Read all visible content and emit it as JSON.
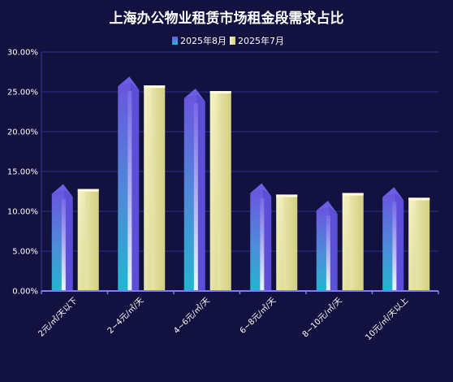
{
  "chart_data": {
    "type": "bar",
    "title": "上海办公物业租赁市场租金段需求占比",
    "categories": [
      "2元/㎡/天以下",
      "2~4元/㎡/天",
      "4~6元/㎡/天",
      "6~8元/㎡/天",
      "8~10元/㎡/天",
      "10元/㎡/天以上"
    ],
    "series": [
      {
        "name": "2025年8月",
        "values": [
          12.2,
          25.7,
          24.2,
          12.3,
          10.1,
          11.8
        ],
        "color": "#3fa7cf"
      },
      {
        "name": "2025年7月",
        "values": [
          12.8,
          25.8,
          25.1,
          12.1,
          12.3,
          11.7
        ],
        "color": "#e3e09a"
      }
    ],
    "ylim": [
      0,
      30
    ],
    "yticks": [
      "0.00%",
      "5.00%",
      "10.00%",
      "15.00%",
      "20.00%",
      "25.00%",
      "30.00%"
    ],
    "xlabel": "",
    "ylabel": "",
    "grid": true,
    "legend": "top-center"
  }
}
